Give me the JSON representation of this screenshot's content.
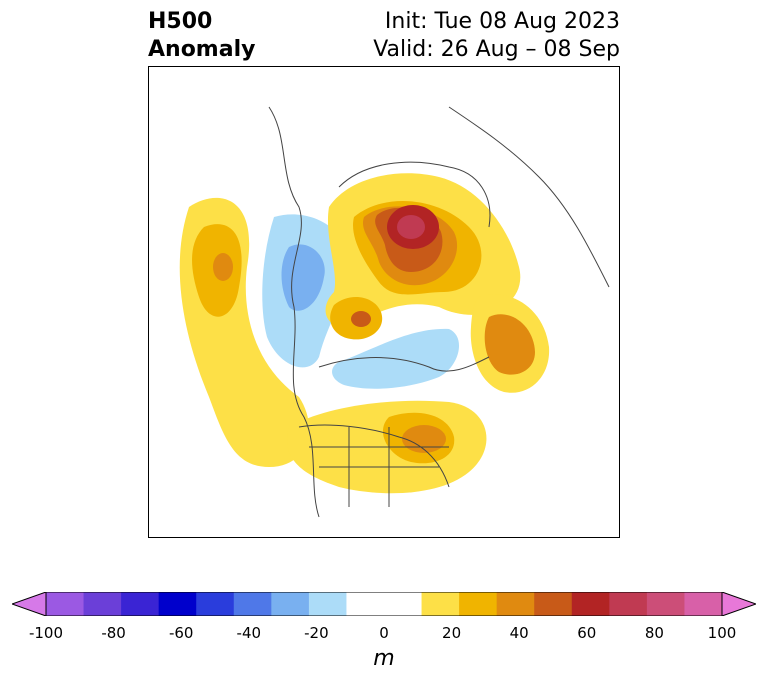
{
  "title": {
    "left_line1": "H500",
    "left_line2": "Anomaly",
    "right_line1": "Init: Tue 08 Aug 2023",
    "right_line2": "Valid: 26 Aug – 08 Sep"
  },
  "colorbar": {
    "unit": "m",
    "ticks": [
      "-100",
      "-80",
      "-60",
      "-40",
      "-20",
      "0",
      "20",
      "40",
      "60",
      "80",
      "100"
    ],
    "min_color": "#d679e8",
    "max_color": "#e878d8",
    "colors": [
      "#9b59e3",
      "#6b3fd8",
      "#3a24d4",
      "#0000cc",
      "#2a3ddc",
      "#4f78e8",
      "#79b0f0",
      "#acdcf8",
      "#ffffff",
      "#ffffff",
      "#fde047",
      "#f0b400",
      "#e08a10",
      "#c85a18",
      "#b22424",
      "#c03a52",
      "#cc4e78",
      "#d860a8"
    ]
  },
  "map": {
    "region": "North America / Northern Hemisphere polar stereographic",
    "anomaly_colors": {
      "pos_10": "#fde047",
      "pos_20": "#f0b400",
      "pos_30": "#e08a10",
      "pos_40": "#c85a18",
      "pos_50": "#b22424",
      "pos_60": "#c03a52",
      "neg_10": "#acdcf8",
      "neg_20": "#79b0f0",
      "neg_30": "#4f78e8"
    }
  }
}
